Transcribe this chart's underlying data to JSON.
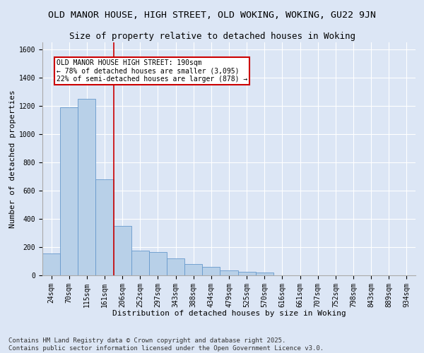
{
  "title": "OLD MANOR HOUSE, HIGH STREET, OLD WOKING, WOKING, GU22 9JN",
  "subtitle": "Size of property relative to detached houses in Woking",
  "xlabel": "Distribution of detached houses by size in Woking",
  "ylabel": "Number of detached properties",
  "categories": [
    "24sqm",
    "70sqm",
    "115sqm",
    "161sqm",
    "206sqm",
    "252sqm",
    "297sqm",
    "343sqm",
    "388sqm",
    "434sqm",
    "479sqm",
    "525sqm",
    "570sqm",
    "616sqm",
    "661sqm",
    "707sqm",
    "752sqm",
    "798sqm",
    "843sqm",
    "889sqm",
    "934sqm"
  ],
  "values": [
    155,
    1190,
    1250,
    680,
    350,
    175,
    165,
    120,
    80,
    60,
    35,
    25,
    20,
    0,
    0,
    0,
    0,
    0,
    0,
    0,
    0
  ],
  "bar_color": "#b8d0e8",
  "bar_edge_color": "#6699cc",
  "red_line_x": 3.5,
  "annotation_text": "OLD MANOR HOUSE HIGH STREET: 190sqm\n← 78% of detached houses are smaller (3,095)\n22% of semi-detached houses are larger (878) →",
  "annotation_box_color": "#ffffff",
  "annotation_border_color": "#cc0000",
  "footnote": "Contains HM Land Registry data © Crown copyright and database right 2025.\nContains public sector information licensed under the Open Government Licence v3.0.",
  "bg_color": "#dce6f5",
  "plot_bg_color": "#dce6f5",
  "ylim": [
    0,
    1650
  ],
  "yticks": [
    0,
    200,
    400,
    600,
    800,
    1000,
    1200,
    1400,
    1600
  ],
  "title_fontsize": 9.5,
  "subtitle_fontsize": 9,
  "label_fontsize": 8,
  "tick_fontsize": 7,
  "footnote_fontsize": 6.5
}
